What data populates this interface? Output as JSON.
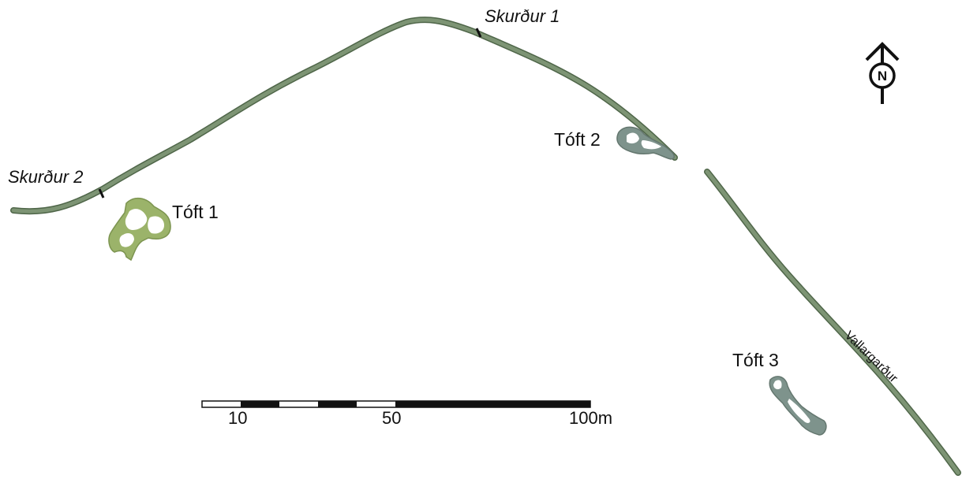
{
  "labels": {
    "skurdur_1": "Skurður 1",
    "skurdur_2": "Skurður 2",
    "toft_1": "Tóft 1",
    "toft_2": "Tóft 2",
    "toft_3": "Tóft 3",
    "wall": "Vallargarður"
  },
  "north_arrow": {
    "letter": "N",
    "icon": "north-arrow-icon"
  },
  "scale_bar": {
    "tick_labels": [
      "10",
      "50",
      "100m"
    ]
  },
  "colors": {
    "wall": "#7d9474",
    "wall_edge": "#4f6649",
    "toft_1": "#9bb36a",
    "toft_2_3": "#7e938c",
    "ink": "#111111"
  }
}
